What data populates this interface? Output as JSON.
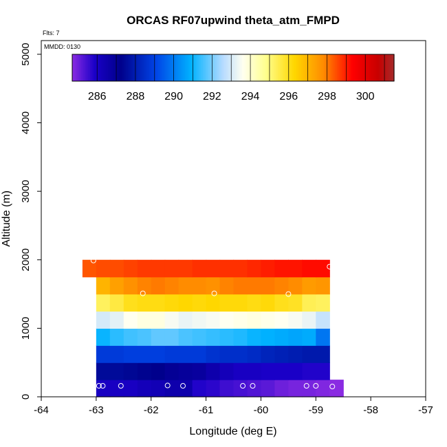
{
  "chart_data": {
    "type": "heatmap",
    "title": "ORCAS RF07upwind theta_atm_FMPD",
    "xlabel": "Longitude (deg E)",
    "ylabel": "Altitude (m)",
    "xlim": [
      -64,
      -57
    ],
    "ylim": [
      0,
      5200
    ],
    "xticks": [
      -64,
      -63,
      -62,
      -61,
      -60,
      -59,
      -58,
      -57
    ],
    "yticks": [
      0,
      1000,
      2000,
      3000,
      4000,
      5000
    ],
    "flts_label": "Flts: 7",
    "mmdd_label": "MMDD: 0130",
    "colorbar": {
      "range": [
        284.7,
        301.5
      ],
      "ticks": [
        286,
        288,
        290,
        292,
        294,
        296,
        298,
        300
      ],
      "stops": [
        [
          0.0,
          "#8a2be2"
        ],
        [
          0.07,
          "#1a00c8"
        ],
        [
          0.15,
          "#00008b"
        ],
        [
          0.26,
          "#0044e6"
        ],
        [
          0.37,
          "#00b2ff"
        ],
        [
          0.47,
          "#b8dcff"
        ],
        [
          0.53,
          "#fffff0"
        ],
        [
          0.6,
          "#ffff90"
        ],
        [
          0.69,
          "#ffd700"
        ],
        [
          0.78,
          "#ff8c00"
        ],
        [
          0.87,
          "#ff0000"
        ],
        [
          0.95,
          "#c80000"
        ],
        [
          1.0,
          "#a52a2a"
        ]
      ]
    },
    "layers": [
      {
        "alt_bottom": 0,
        "alt_top": 250,
        "lon_start": -63.0,
        "lon_end": -58.5,
        "values": [
          286.0,
          286.0,
          286.0,
          286.2,
          286.3,
          286.5,
          286.5,
          285.8,
          285.7,
          285.5,
          285.4,
          285.3,
          285.2,
          285.0,
          284.9,
          284.9,
          284.8,
          284.7
        ]
      },
      {
        "alt_bottom": 250,
        "alt_top": 500,
        "lon_start": -63.0,
        "lon_end": -58.75,
        "values": [
          287.5,
          287.5,
          287.4,
          287.3,
          287.2,
          287.0,
          286.9,
          286.8,
          286.5,
          286.2,
          286.0,
          286.0,
          285.9,
          285.9,
          285.9,
          285.8,
          285.8
        ]
      },
      {
        "alt_bottom": 500,
        "alt_top": 750,
        "lon_start": -63.0,
        "lon_end": -58.75,
        "values": [
          288.8,
          288.8,
          288.9,
          288.9,
          288.9,
          288.8,
          288.8,
          288.8,
          288.6,
          288.5,
          288.5,
          288.4,
          288.2,
          288.1,
          288.0,
          287.9,
          287.9
        ]
      },
      {
        "alt_bottom": 750,
        "alt_top": 1000,
        "lon_start": -63.0,
        "lon_end": -58.75,
        "values": [
          291.0,
          291.3,
          291.5,
          291.6,
          291.8,
          291.8,
          291.6,
          291.5,
          291.4,
          291.3,
          291.2,
          291.0,
          290.9,
          290.8,
          290.7,
          290.8,
          289.9
        ]
      },
      {
        "alt_bottom": 1000,
        "alt_top": 1250,
        "lon_start": -63.0,
        "lon_end": -58.75,
        "values": [
          293.0,
          293.2,
          293.6,
          293.8,
          293.8,
          293.5,
          293.3,
          293.4,
          293.5,
          293.6,
          293.7,
          293.8,
          293.7,
          293.6,
          293.5,
          293.3,
          292.8
        ]
      },
      {
        "alt_bottom": 1250,
        "alt_top": 1500,
        "lon_start": -63.0,
        "lon_end": -58.75,
        "values": [
          295.3,
          295.6,
          296.0,
          296.1,
          296.1,
          296.2,
          296.3,
          296.2,
          296.3,
          296.2,
          296.2,
          296.1,
          296.2,
          296.0,
          295.9,
          295.4,
          295.3
        ]
      },
      {
        "alt_bottom": 1500,
        "alt_top": 1750,
        "lon_start": -63.0,
        "lon_end": -58.75,
        "values": [
          297.0,
          297.4,
          297.7,
          297.9,
          298.0,
          297.9,
          297.8,
          297.8,
          297.7,
          297.9,
          298.0,
          298.0,
          298.0,
          297.9,
          297.8,
          297.5,
          297.6
        ]
      },
      {
        "alt_bottom": 1750,
        "alt_top": 2000,
        "lon_start": -63.25,
        "lon_end": -58.75,
        "values": [
          298.4,
          298.5,
          298.5,
          298.6,
          298.7,
          298.7,
          298.7,
          298.7,
          298.8,
          298.8,
          298.8,
          298.8,
          298.9,
          299.0,
          299.1,
          299.1,
          299.2,
          299.2
        ]
      }
    ],
    "points": [
      {
        "lon": -63.05,
        "alt": 1990
      },
      {
        "lon": -58.75,
        "alt": 1900
      },
      {
        "lon": -62.15,
        "alt": 1510
      },
      {
        "lon": -60.85,
        "alt": 1510
      },
      {
        "lon": -59.5,
        "alt": 1500
      },
      {
        "lon": -62.95,
        "alt": 160
      },
      {
        "lon": -62.88,
        "alt": 160
      },
      {
        "lon": -62.55,
        "alt": 160
      },
      {
        "lon": -61.7,
        "alt": 165
      },
      {
        "lon": -61.42,
        "alt": 160
      },
      {
        "lon": -60.33,
        "alt": 160
      },
      {
        "lon": -60.15,
        "alt": 160
      },
      {
        "lon": -59.17,
        "alt": 160
      },
      {
        "lon": -59.0,
        "alt": 160
      },
      {
        "lon": -58.7,
        "alt": 150
      }
    ]
  }
}
